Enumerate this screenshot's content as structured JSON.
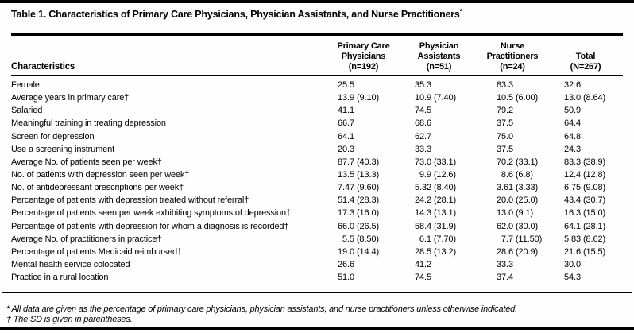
{
  "table": {
    "title": "Table 1. Characteristics of Primary Care Physicians, Physician Assistants, and Nurse Practitioners",
    "title_mark": "*",
    "row_header": "Characteristics",
    "columns": [
      {
        "lines": [
          "Primary Care",
          "Physicians",
          "(n=192)"
        ]
      },
      {
        "lines": [
          "Physician",
          "Assistants",
          "(n=51)"
        ]
      },
      {
        "lines": [
          "Nurse",
          "Practitioners",
          "(n=24)"
        ]
      },
      {
        "lines": [
          "Total",
          "(N=267)"
        ]
      }
    ],
    "rows": [
      {
        "label": "Female",
        "values": [
          "25.5",
          "35.3",
          "83.3",
          "32.6"
        ]
      },
      {
        "label": "Average years in primary care†",
        "values": [
          "13.9 (9.10)",
          "10.9 (7.40)",
          "10.5 (6.00)",
          "13.0 (8.64)"
        ]
      },
      {
        "label": "Salaried",
        "values": [
          "41.1",
          "74.5",
          "79.2",
          "50.9"
        ]
      },
      {
        "label": "Meaningful training in treating depression",
        "values": [
          "66.7",
          "68.6",
          "37.5",
          "64.4"
        ]
      },
      {
        "label": "Screen for depression",
        "values": [
          "64.1",
          "62.7",
          "75.0",
          "64.8"
        ]
      },
      {
        "label": "Use a screening instrument",
        "values": [
          "20.3",
          "33.3",
          "37.5",
          "24.3"
        ]
      },
      {
        "label": "Average No. of patients seen per week†",
        "values": [
          "87.7 (40.3)",
          "73.0 (33.1)",
          "70.2 (33.1)",
          "83.3 (38.9)"
        ]
      },
      {
        "label": "No. of patients with depression seen per week†",
        "values": [
          "13.5 (13.3)",
          "  9.9 (12.6)",
          "  8.6 (6.8)",
          "12.4 (12.8)"
        ]
      },
      {
        "label": "No. of antidepressant prescriptions per week†",
        "values": [
          "7.47 (9.60)",
          "5.32 (8.40)",
          "3.61 (3.33)",
          "6.75 (9.08)"
        ]
      },
      {
        "label": "Percentage of patients with depression treated without referral†",
        "values": [
          "51.4 (28.3)",
          "24.2 (28.1)",
          "20.0 (25.0)",
          "43.4 (30.7)"
        ]
      },
      {
        "label": "Percentage of patients seen per week exhibiting symptoms of depression†",
        "values": [
          "17.3 (16.0)",
          "14.3 (13.1)",
          "13.0 (9.1)",
          "16.3 (15.0)"
        ]
      },
      {
        "label": "Percentage of patients with depression for whom a diagnosis is recorded†",
        "values": [
          "66.0 (26.5)",
          "58.4 (31.9)",
          "62.0 (30.0)",
          "64.1 (28.1)"
        ]
      },
      {
        "label": "Average No. of practitioners in practice†",
        "values": [
          "  5.5 (8.50)",
          "  6.1 (7.70)",
          "  7.7 (11.50)",
          "5.83 (8.62)"
        ]
      },
      {
        "label": "Percentage of patients Medicaid reimbursed†",
        "values": [
          "19.0 (14.4)",
          "28.5 (13.2)",
          "28.6 (20.9)",
          "21.6 (15.5)"
        ]
      },
      {
        "label": "Mental health service colocated",
        "values": [
          "26.6",
          "41.2",
          "33.3",
          "30.0"
        ]
      },
      {
        "label": "Practice in a rural location",
        "values": [
          "51.0",
          "74.5",
          "37.4",
          "54.3"
        ]
      }
    ],
    "footnotes": [
      "* All data are given as the percentage of primary care physicians, physician assistants, and nurse practitioners unless otherwise indicated.",
      "† The SD is given in parentheses."
    ],
    "colors": {
      "text": "#000000",
      "rule": "#000000",
      "background": "#fefefe"
    }
  }
}
